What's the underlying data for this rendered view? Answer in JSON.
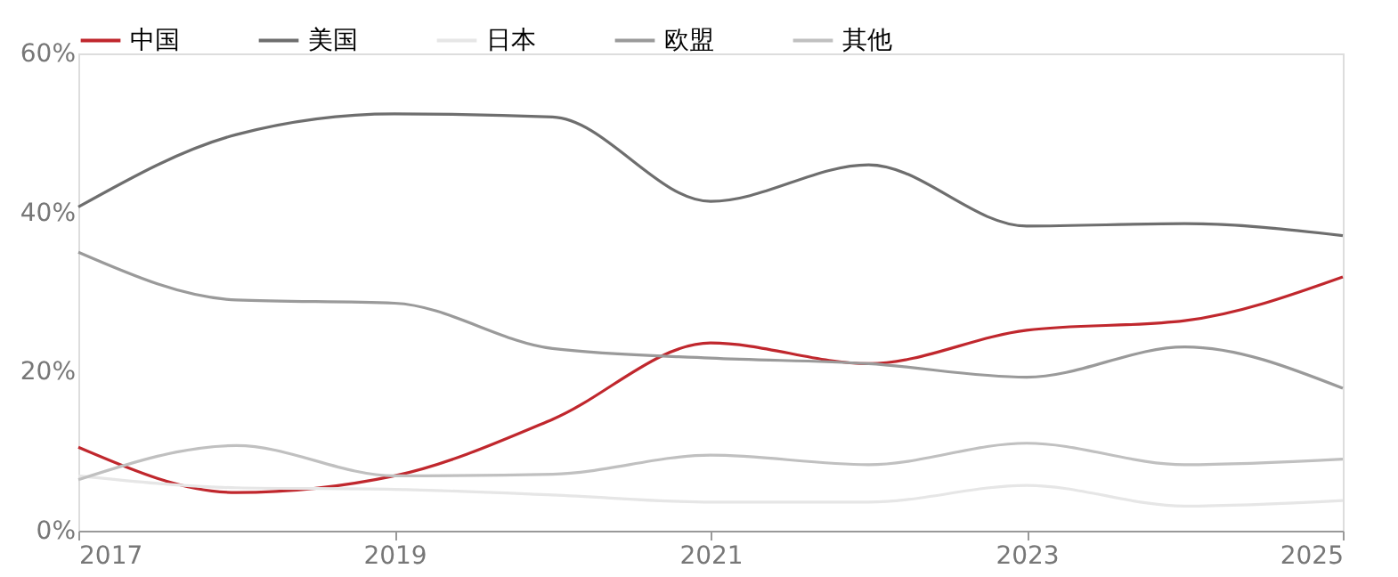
{
  "chart_data": {
    "type": "line",
    "x": [
      2017,
      2018,
      2019,
      2020,
      2021,
      2022,
      2023,
      2024,
      2025
    ],
    "series": [
      {
        "name": "中国",
        "color": "#c0272d",
        "values": [
          10.5,
          4.8,
          6.9,
          14,
          23.6,
          21,
          25.2,
          26.4,
          31.9
        ]
      },
      {
        "name": "美国",
        "color": "#6e6e6e",
        "values": [
          40.7,
          49.8,
          52.4,
          52,
          41.4,
          46,
          38.3,
          38.6,
          37.1
        ]
      },
      {
        "name": "日本",
        "color": "#e6e6e6",
        "values": [
          6.9,
          5.4,
          5.2,
          4.5,
          3.6,
          3.6,
          5.7,
          3.1,
          3.8
        ]
      },
      {
        "name": "欧盟",
        "color": "#9a9a9a",
        "values": [
          35,
          29,
          28.6,
          22.9,
          21.7,
          21,
          19.3,
          23.1,
          17.9
        ]
      },
      {
        "name": "其他",
        "color": "#c0c0c0",
        "values": [
          6.4,
          10.7,
          6.9,
          7.1,
          9.5,
          8.3,
          11,
          8.3,
          9
        ]
      }
    ],
    "xlim": [
      2017,
      2025
    ],
    "xticks": [
      2017,
      2019,
      2021,
      2023,
      2025
    ],
    "ylim": [
      0,
      60
    ],
    "yticks": [
      {
        "value": 0,
        "label": "0%"
      },
      {
        "value": 20,
        "label": "20%"
      },
      {
        "value": 40,
        "label": "40%"
      },
      {
        "value": 60,
        "label": "60%"
      }
    ],
    "legend": "top",
    "grid": false,
    "marker": "none",
    "line_style": "solid"
  }
}
